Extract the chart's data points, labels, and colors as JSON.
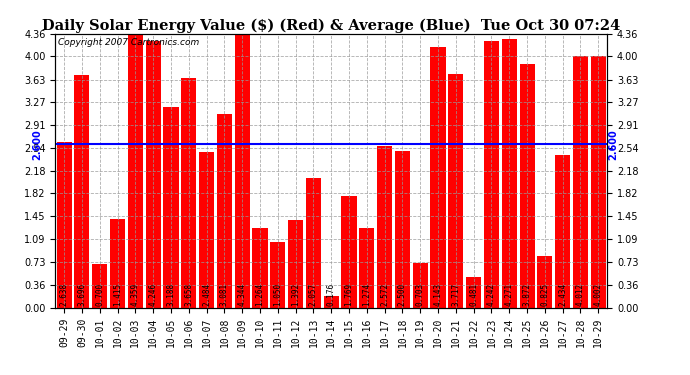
{
  "title": "Daily Solar Energy Value ($) (Red) & Average (Blue)  Tue Oct 30 07:24",
  "copyright": "Copyright 2007 Cartronics.com",
  "average_line": 2.6,
  "categories": [
    "09-29",
    "09-30",
    "10-01",
    "10-02",
    "10-03",
    "10-04",
    "10-05",
    "10-06",
    "10-07",
    "10-08",
    "10-09",
    "10-10",
    "10-11",
    "10-12",
    "10-13",
    "10-14",
    "10-15",
    "10-16",
    "10-17",
    "10-18",
    "10-19",
    "10-20",
    "10-21",
    "10-22",
    "10-23",
    "10-24",
    "10-25",
    "10-26",
    "10-27",
    "10-28",
    "10-29"
  ],
  "values": [
    2.638,
    3.696,
    0.7,
    1.415,
    4.359,
    4.246,
    3.188,
    3.658,
    2.484,
    3.081,
    4.344,
    1.264,
    1.05,
    1.392,
    2.057,
    0.176,
    1.769,
    1.274,
    2.572,
    2.5,
    0.703,
    4.143,
    3.717,
    0.481,
    4.242,
    4.271,
    3.872,
    0.825,
    2.434,
    4.012,
    4.002
  ],
  "bar_color": "#FF0000",
  "line_color": "#0000FF",
  "background_color": "#FFFFFF",
  "grid_color": "#999999",
  "title_fontsize": 10.5,
  "copyright_fontsize": 6.5,
  "tick_fontsize": 7,
  "value_fontsize": 5.5,
  "yticks": [
    0.0,
    0.36,
    0.73,
    1.09,
    1.45,
    1.82,
    2.18,
    2.54,
    2.91,
    3.27,
    3.63,
    4.0,
    4.36
  ],
  "ylim": [
    0.0,
    4.36
  ],
  "avg_label": "2.600"
}
